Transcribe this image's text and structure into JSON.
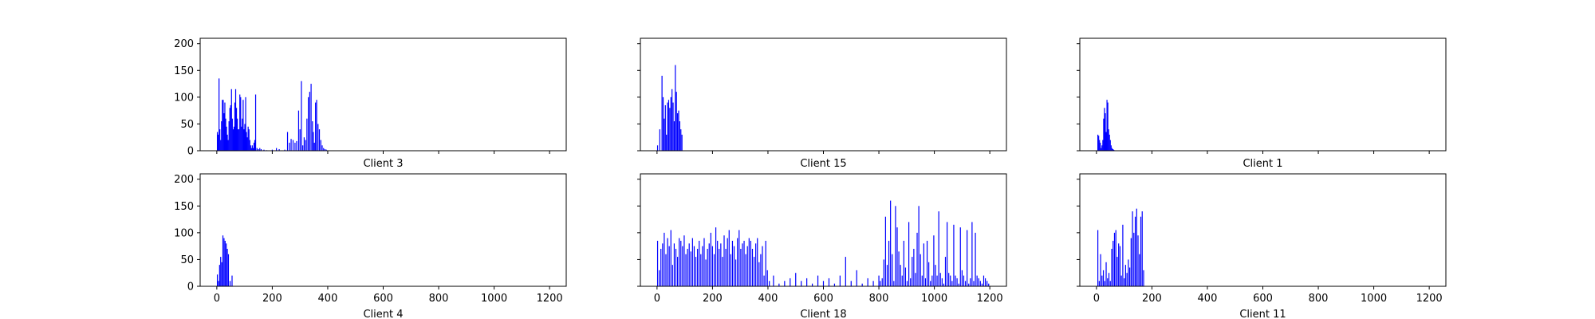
{
  "chart_data": [
    {
      "type": "bar",
      "xlabel": "Client 3",
      "xlim": [
        -60,
        1260
      ],
      "ylim": [
        0,
        210
      ],
      "xticks": [
        0,
        200,
        400,
        600,
        800,
        1000,
        1200
      ],
      "yticks": [
        0,
        50,
        100,
        150,
        200
      ],
      "show_xtick_labels": false,
      "show_ytick_labels": true,
      "series": [
        {
          "color": "#0000ff",
          "x": [
            2,
            5,
            8,
            11,
            14,
            17,
            20,
            23,
            26,
            29,
            32,
            35,
            38,
            41,
            44,
            47,
            50,
            53,
            56,
            59,
            62,
            65,
            68,
            71,
            74,
            77,
            80,
            83,
            86,
            89,
            92,
            95,
            98,
            101,
            104,
            107,
            110,
            113,
            116,
            119,
            122,
            125,
            128,
            131,
            134,
            137,
            140,
            145,
            150,
            155,
            160,
            170,
            180,
            200,
            215,
            225,
            245,
            255,
            262,
            268,
            275,
            282,
            288,
            295,
            300,
            305,
            310,
            315,
            320,
            325,
            330,
            335,
            340,
            345,
            348,
            352,
            356,
            360,
            365,
            370,
            375,
            380,
            385,
            390,
            395
          ],
          "values": [
            35,
            30,
            135,
            40,
            20,
            55,
            95,
            95,
            70,
            90,
            60,
            45,
            30,
            20,
            55,
            80,
            85,
            115,
            60,
            40,
            45,
            90,
            115,
            80,
            60,
            40,
            40,
            105,
            100,
            45,
            60,
            95,
            40,
            50,
            100,
            35,
            25,
            45,
            40,
            20,
            10,
            5,
            10,
            5,
            15,
            20,
            105,
            5,
            3,
            5,
            3,
            2,
            1,
            2,
            5,
            3,
            2,
            35,
            15,
            22,
            20,
            15,
            18,
            75,
            40,
            130,
            10,
            25,
            20,
            60,
            100,
            110,
            125,
            55,
            35,
            15,
            90,
            95,
            50,
            40,
            20,
            10,
            5,
            3,
            2
          ]
        }
      ]
    },
    {
      "type": "bar",
      "xlabel": "Client 15",
      "xlim": [
        -60,
        1260
      ],
      "ylim": [
        0,
        210
      ],
      "xticks": [
        0,
        200,
        400,
        600,
        800,
        1000,
        1200
      ],
      "yticks": [
        0,
        50,
        100,
        150,
        200
      ],
      "show_xtick_labels": false,
      "show_ytick_labels": false,
      "series": [
        {
          "color": "#0000ff",
          "x": [
            2,
            10,
            18,
            22,
            26,
            30,
            34,
            38,
            42,
            46,
            50,
            54,
            58,
            62,
            66,
            70,
            74,
            78,
            82,
            86,
            90
          ],
          "values": [
            10,
            40,
            140,
            100,
            60,
            85,
            30,
            90,
            95,
            80,
            100,
            115,
            90,
            55,
            160,
            110,
            70,
            75,
            55,
            40,
            30
          ]
        }
      ]
    },
    {
      "type": "bar",
      "xlabel": "Client 1",
      "xlim": [
        -60,
        1260
      ],
      "ylim": [
        0,
        210
      ],
      "xticks": [
        0,
        200,
        400,
        600,
        800,
        1000,
        1200
      ],
      "yticks": [
        0,
        50,
        100,
        150,
        200
      ],
      "show_xtick_labels": false,
      "show_ytick_labels": false,
      "series": [
        {
          "color": "#0000ff",
          "x": [
            5,
            8,
            11,
            14,
            17,
            20,
            23,
            26,
            29,
            32,
            35,
            38,
            41,
            44,
            47,
            50,
            53,
            56,
            59,
            62,
            65
          ],
          "values": [
            30,
            28,
            20,
            15,
            5,
            10,
            20,
            60,
            80,
            70,
            35,
            95,
            90,
            40,
            30,
            20,
            10,
            5,
            3,
            2,
            1
          ]
        }
      ]
    },
    {
      "type": "bar",
      "xlabel": "Client 4",
      "xlim": [
        -60,
        1260
      ],
      "ylim": [
        0,
        210
      ],
      "xticks": [
        0,
        200,
        400,
        600,
        800,
        1000,
        1200
      ],
      "yticks": [
        0,
        50,
        100,
        150,
        200
      ],
      "show_xtick_labels": true,
      "show_ytick_labels": true,
      "series": [
        {
          "color": "#0000ff",
          "x": [
            2,
            6,
            10,
            14,
            18,
            22,
            26,
            30,
            34,
            38,
            42,
            48,
            55
          ],
          "values": [
            22,
            10,
            40,
            55,
            45,
            95,
            90,
            85,
            80,
            70,
            60,
            10,
            20
          ]
        }
      ]
    },
    {
      "type": "bar",
      "xlabel": "Client 18",
      "xlim": [
        -60,
        1260
      ],
      "ylim": [
        0,
        210
      ],
      "xticks": [
        0,
        200,
        400,
        600,
        800,
        1000,
        1200
      ],
      "yticks": [
        0,
        50,
        100,
        150,
        200
      ],
      "show_xtick_labels": true,
      "show_ytick_labels": false,
      "series": [
        {
          "color": "#0000ff",
          "x": [
            2,
            8,
            14,
            20,
            26,
            32,
            38,
            44,
            50,
            56,
            62,
            68,
            74,
            80,
            86,
            92,
            98,
            104,
            110,
            116,
            122,
            128,
            134,
            140,
            146,
            152,
            158,
            164,
            170,
            176,
            182,
            188,
            194,
            200,
            206,
            212,
            218,
            224,
            230,
            236,
            242,
            248,
            254,
            260,
            266,
            272,
            278,
            284,
            290,
            296,
            302,
            308,
            314,
            320,
            326,
            332,
            338,
            344,
            350,
            356,
            362,
            368,
            374,
            380,
            386,
            392,
            398,
            405,
            420,
            440,
            460,
            480,
            500,
            520,
            540,
            560,
            580,
            600,
            620,
            640,
            660,
            680,
            700,
            720,
            740,
            760,
            780,
            800,
            805,
            812,
            818,
            824,
            830,
            836,
            842,
            848,
            854,
            860,
            866,
            872,
            878,
            884,
            890,
            896,
            902,
            908,
            914,
            920,
            926,
            932,
            938,
            944,
            950,
            956,
            962,
            968,
            974,
            980,
            986,
            992,
            998,
            1004,
            1010,
            1016,
            1022,
            1028,
            1034,
            1040,
            1046,
            1052,
            1058,
            1064,
            1070,
            1076,
            1082,
            1088,
            1094,
            1100,
            1106,
            1112,
            1118,
            1124,
            1130,
            1136,
            1142,
            1148,
            1154,
            1160,
            1166,
            1172,
            1178,
            1184,
            1190,
            1196
          ],
          "values": [
            85,
            30,
            70,
            80,
            100,
            60,
            90,
            75,
            105,
            40,
            80,
            70,
            55,
            90,
            85,
            75,
            95,
            60,
            70,
            80,
            65,
            90,
            75,
            55,
            70,
            85,
            60,
            75,
            90,
            50,
            70,
            80,
            100,
            75,
            60,
            110,
            85,
            70,
            80,
            55,
            95,
            70,
            90,
            105,
            60,
            85,
            75,
            50,
            90,
            105,
            70,
            80,
            85,
            60,
            75,
            90,
            85,
            70,
            55,
            80,
            90,
            45,
            60,
            75,
            20,
            85,
            30,
            10,
            20,
            5,
            10,
            15,
            25,
            10,
            15,
            5,
            20,
            10,
            15,
            5,
            20,
            55,
            10,
            30,
            5,
            15,
            10,
            20,
            10,
            15,
            50,
            130,
            40,
            85,
            160,
            60,
            10,
            150,
            110,
            65,
            40,
            20,
            85,
            35,
            10,
            120,
            15,
            55,
            70,
            25,
            100,
            150,
            60,
            20,
            80,
            15,
            85,
            45,
            10,
            20,
            95,
            40,
            20,
            140,
            25,
            15,
            5,
            55,
            120,
            25,
            20,
            10,
            115,
            20,
            15,
            5,
            110,
            30,
            20,
            10,
            105,
            5,
            15,
            120,
            10,
            100,
            20,
            15,
            10,
            5,
            20,
            15,
            10,
            5
          ]
        }
      ]
    },
    {
      "type": "bar",
      "xlabel": "Client 11",
      "xlim": [
        -60,
        1260
      ],
      "ylim": [
        0,
        210
      ],
      "xticks": [
        0,
        200,
        400,
        600,
        800,
        1000,
        1200
      ],
      "yticks": [
        0,
        50,
        100,
        150,
        200
      ],
      "show_xtick_labels": true,
      "show_ytick_labels": false,
      "series": [
        {
          "color": "#0000ff",
          "x": [
            5,
            10,
            15,
            20,
            25,
            30,
            35,
            40,
            45,
            50,
            55,
            60,
            65,
            70,
            75,
            80,
            85,
            90,
            95,
            100,
            105,
            110,
            115,
            120,
            125,
            130,
            135,
            140,
            145,
            150,
            155,
            160,
            165,
            170
          ],
          "values": [
            105,
            10,
            60,
            20,
            30,
            10,
            45,
            15,
            25,
            10,
            70,
            85,
            100,
            105,
            55,
            80,
            75,
            20,
            115,
            15,
            40,
            25,
            50,
            35,
            90,
            140,
            100,
            130,
            145,
            95,
            60,
            130,
            140,
            30
          ]
        }
      ]
    }
  ]
}
